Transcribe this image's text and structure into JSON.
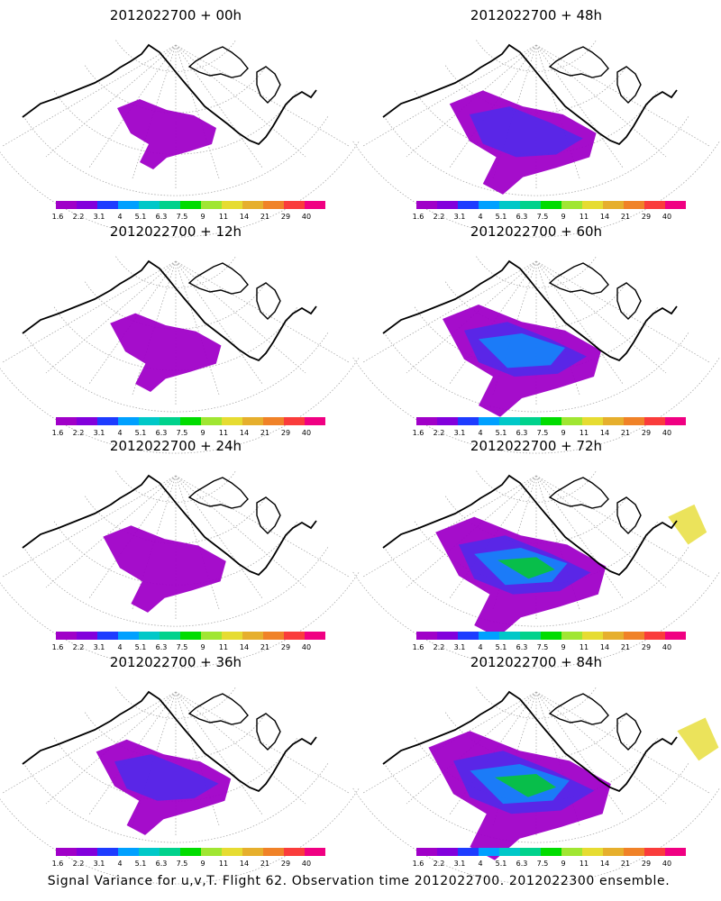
{
  "footer": "Signal Variance for u,v,T. Flight 62. Observation time 2012022700. 2012022300 ensemble.",
  "colorbar": {
    "labels": [
      "1.6",
      "2.2",
      "3.1",
      "4",
      "5.1",
      "6.3",
      "7.5",
      "9",
      "11",
      "14",
      "21",
      "29",
      "40"
    ],
    "colors": [
      "#a000c8",
      "#8200dc",
      "#1e3cff",
      "#00a0ff",
      "#00c8c8",
      "#00d28c",
      "#00dc00",
      "#a0e632",
      "#e6dc32",
      "#e6af2d",
      "#f08228",
      "#fa3c3c",
      "#f00082"
    ]
  },
  "panels": [
    {
      "title": "2012022700 + 00h",
      "level": 0
    },
    {
      "title": "2012022700 + 12h",
      "level": 1
    },
    {
      "title": "2012022700 + 24h",
      "level": 2
    },
    {
      "title": "2012022700 + 36h",
      "level": 3
    },
    {
      "title": "2012022700 + 48h",
      "level": 4
    },
    {
      "title": "2012022700 + 60h",
      "level": 5
    },
    {
      "title": "2012022700 + 72h",
      "level": 6
    },
    {
      "title": "2012022700 + 84h",
      "level": 7
    }
  ],
  "map_colors": {
    "fill_main": "#a000c8",
    "fill_mid": "#8200dc",
    "fill_blue": "#1e3cff",
    "fill_cyan": "#00a0ff",
    "fill_teal": "#00c8c8",
    "fill_green": "#00dc00",
    "fill_yellow": "#e6dc32",
    "grid": "#aaaaaa",
    "coast": "#000000"
  }
}
